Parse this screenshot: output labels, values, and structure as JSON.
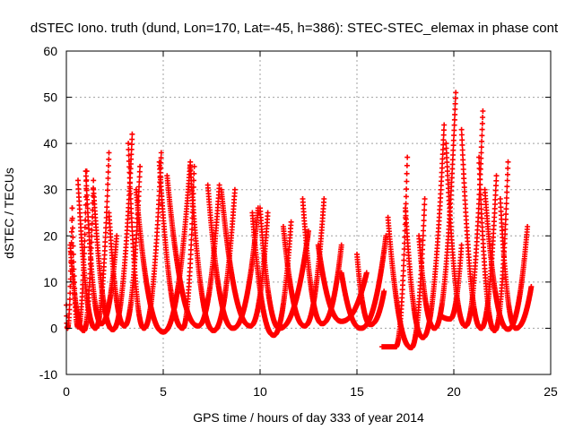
{
  "chart_data": {
    "type": "scatter",
    "title": "dSTEC Iono. truth (dund, Lon=170, Lat=-45, h=386): STEC-STEC_elemax in phase cont",
    "xlabel": "GPS time / hours of day 333 of year 2014",
    "ylabel": "dSTEC  / TECUs",
    "xlim": [
      0,
      25
    ],
    "ylim": [
      -10,
      60
    ],
    "x_ticks": [
      0,
      5,
      10,
      15,
      20,
      25
    ],
    "y_ticks": [
      -10,
      0,
      10,
      20,
      30,
      40,
      50,
      60
    ],
    "grid": true,
    "marker": "plus",
    "color": "#ff0000",
    "arcs": [
      {
        "start": 0.0,
        "min_t": 0.05,
        "end": 0.3,
        "peak_start": 5,
        "peak_end": 26,
        "min_val": 0
      },
      {
        "start": 0.3,
        "min_t": 0.6,
        "end": 1.05,
        "peak_start": 26,
        "peak_end": 34,
        "min_val": 0.3
      },
      {
        "start": 0.2,
        "min_t": 0.9,
        "end": 1.4,
        "peak_start": 18,
        "peak_end": 32,
        "min_val": -0.5
      },
      {
        "start": 0.6,
        "min_t": 1.5,
        "end": 2.2,
        "peak_start": 32,
        "peak_end": 38,
        "min_val": 0
      },
      {
        "start": 1.0,
        "min_t": 1.8,
        "end": 2.6,
        "peak_start": 34,
        "peak_end": 20,
        "min_val": 1
      },
      {
        "start": 1.4,
        "min_t": 2.4,
        "end": 3.4,
        "peak_start": 30,
        "peak_end": 42,
        "min_val": -0.3
      },
      {
        "start": 2.2,
        "min_t": 3.0,
        "end": 3.8,
        "peak_start": 25,
        "peak_end": 35,
        "min_val": 0.5
      },
      {
        "start": 3.2,
        "min_t": 4.0,
        "end": 4.9,
        "peak_start": 40,
        "peak_end": 38,
        "min_val": 0
      },
      {
        "start": 3.6,
        "min_t": 5.0,
        "end": 6.4,
        "peak_start": 30,
        "peak_end": 36,
        "min_val": -0.8
      },
      {
        "start": 4.8,
        "min_t": 6.0,
        "end": 6.6,
        "peak_start": 36,
        "peak_end": 35,
        "min_val": 0
      },
      {
        "start": 5.2,
        "min_t": 6.8,
        "end": 7.9,
        "peak_start": 33,
        "peak_end": 31,
        "min_val": 0.5
      },
      {
        "start": 6.4,
        "min_t": 7.6,
        "end": 8.7,
        "peak_start": 35,
        "peak_end": 30,
        "min_val": -0.5
      },
      {
        "start": 7.3,
        "min_t": 8.6,
        "end": 9.9,
        "peak_start": 31,
        "peak_end": 26,
        "min_val": 0
      },
      {
        "start": 8.0,
        "min_t": 9.5,
        "end": 10.4,
        "peak_start": 30,
        "peak_end": 25,
        "min_val": 0.5
      },
      {
        "start": 9.6,
        "min_t": 10.7,
        "end": 11.6,
        "peak_start": 25,
        "peak_end": 23,
        "min_val": -1.5
      },
      {
        "start": 10.0,
        "min_t": 11.0,
        "end": 12.5,
        "peak_start": 26,
        "peak_end": 21,
        "min_val": 0
      },
      {
        "start": 11.2,
        "min_t": 12.3,
        "end": 13.3,
        "peak_start": 22,
        "peak_end": 28,
        "min_val": 0.5
      },
      {
        "start": 12.2,
        "min_t": 13.2,
        "end": 14.2,
        "peak_start": 28,
        "peak_end": 18,
        "min_val": 1
      },
      {
        "start": 13.0,
        "min_t": 14.2,
        "end": 15.5,
        "peak_start": 18,
        "peak_end": 12,
        "min_val": 1.5
      },
      {
        "start": 14.2,
        "min_t": 15.2,
        "end": 16.5,
        "peak_start": 12,
        "peak_end": 20,
        "min_val": 0
      },
      {
        "start": 15.0,
        "min_t": 15.7,
        "end": 16.4,
        "peak_start": 16,
        "peak_end": 8,
        "min_val": 0.8
      },
      {
        "start": 16.3,
        "min_t": 17.0,
        "end": 17.6,
        "peak_start": -4,
        "peak_end": 37,
        "min_val": -4
      },
      {
        "start": 16.6,
        "min_t": 17.8,
        "end": 18.5,
        "peak_start": 24,
        "peak_end": 28,
        "min_val": -4.2
      },
      {
        "start": 17.5,
        "min_t": 18.4,
        "end": 19.5,
        "peak_start": 26,
        "peak_end": 44,
        "min_val": -2
      },
      {
        "start": 18.2,
        "min_t": 19.0,
        "end": 20.1,
        "peak_start": 20,
        "peak_end": 51,
        "min_val": 0
      },
      {
        "start": 19.4,
        "min_t": 19.8,
        "end": 20.4,
        "peak_start": 2.5,
        "peak_end": 18,
        "min_val": 2
      },
      {
        "start": 19.6,
        "min_t": 20.6,
        "end": 21.5,
        "peak_start": 40,
        "peak_end": 47,
        "min_val": 0.5
      },
      {
        "start": 20.4,
        "min_t": 21.4,
        "end": 22.2,
        "peak_start": 43,
        "peak_end": 33,
        "min_val": 0
      },
      {
        "start": 21.3,
        "min_t": 22.1,
        "end": 22.8,
        "peak_start": 37,
        "peak_end": 36,
        "min_val": -0.5
      },
      {
        "start": 21.6,
        "min_t": 22.8,
        "end": 23.8,
        "peak_start": 30,
        "peak_end": 22,
        "min_val": -0.2
      },
      {
        "start": 22.4,
        "min_t": 23.2,
        "end": 24.0,
        "peak_start": 28,
        "peak_end": 9,
        "min_val": 0
      }
    ]
  }
}
